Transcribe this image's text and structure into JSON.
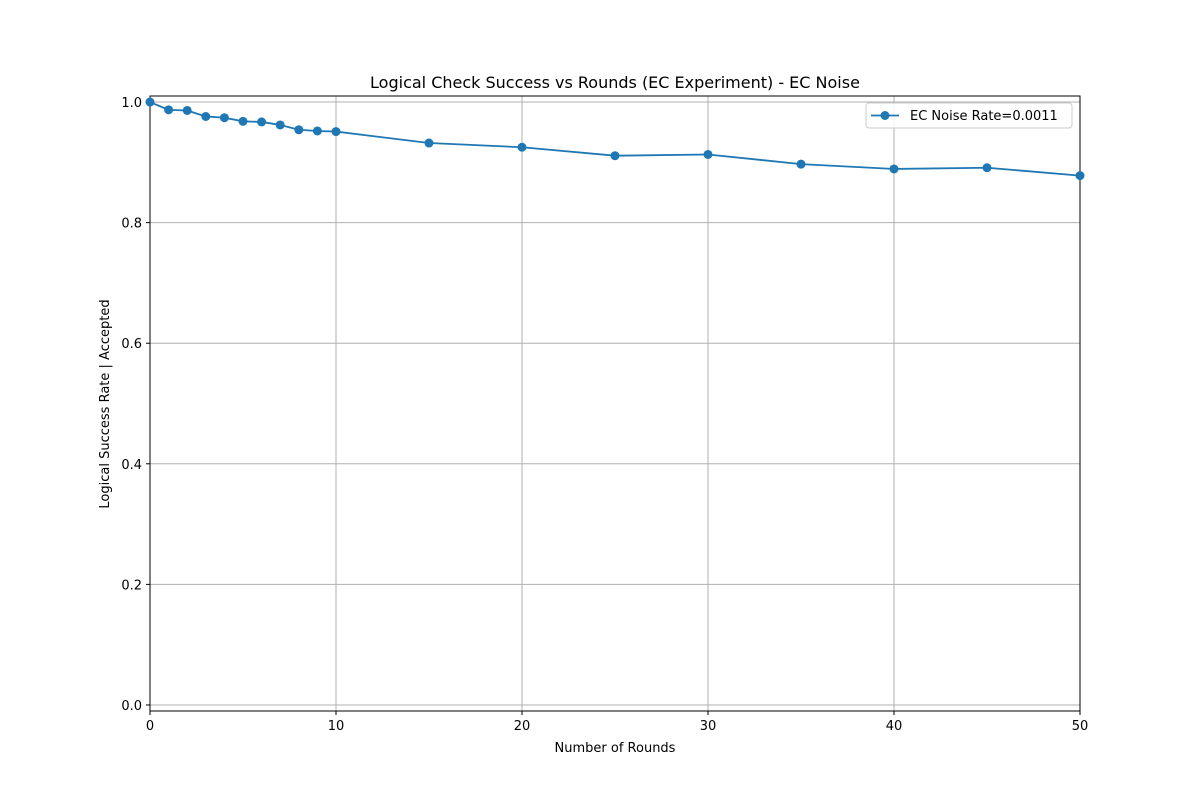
{
  "chart_data": {
    "type": "line",
    "title": "Logical Check Success vs Rounds (EC Experiment) - EC Noise",
    "xlabel": "Number of Rounds",
    "ylabel": "Logical Success Rate | Accepted",
    "xlim": [
      0,
      50
    ],
    "ylim": [
      -0.01,
      1.01
    ],
    "xticks": [
      0,
      10,
      20,
      30,
      40,
      50
    ],
    "yticks": [
      0.0,
      0.2,
      0.4,
      0.6,
      0.8,
      1.0
    ],
    "xtick_labels": [
      "0",
      "10",
      "20",
      "30",
      "40",
      "50"
    ],
    "ytick_labels": [
      "0.0",
      "0.2",
      "0.4",
      "0.6",
      "0.8",
      "1.0"
    ],
    "grid": true,
    "legend_position": "top-right",
    "series": [
      {
        "name": "EC Noise Rate=0.0011",
        "color": "#1f77b4",
        "marker": "circle",
        "x": [
          0,
          1,
          2,
          3,
          4,
          5,
          6,
          7,
          8,
          9,
          10,
          15,
          20,
          25,
          30,
          35,
          40,
          45,
          50
        ],
        "y": [
          1.0,
          0.987,
          0.986,
          0.976,
          0.974,
          0.968,
          0.967,
          0.962,
          0.954,
          0.952,
          0.951,
          0.932,
          0.925,
          0.911,
          0.913,
          0.897,
          0.889,
          0.891,
          0.878
        ]
      }
    ]
  }
}
